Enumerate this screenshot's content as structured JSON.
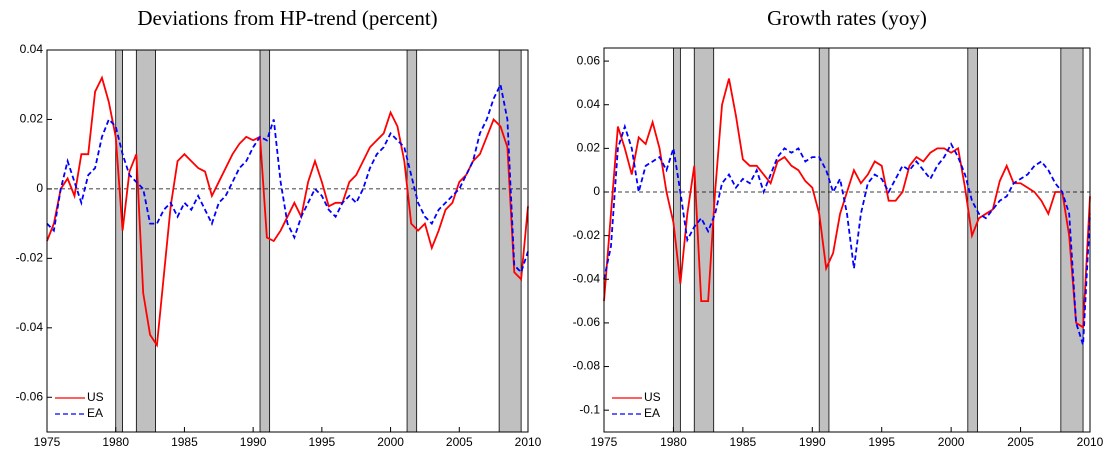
{
  "chart_data": [
    {
      "type": "line",
      "title": "Deviations from HP-trend (percent)",
      "x": [
        1975,
        1975.5,
        1976,
        1976.5,
        1977,
        1977.5,
        1978,
        1978.5,
        1979,
        1979.5,
        1980,
        1980.5,
        1981,
        1981.5,
        1982,
        1982.5,
        1983,
        1983.5,
        1984,
        1984.5,
        1985,
        1985.5,
        1986,
        1986.5,
        1987,
        1987.5,
        1988,
        1988.5,
        1989,
        1989.5,
        1990,
        1990.5,
        1991,
        1991.5,
        1992,
        1992.5,
        1993,
        1993.5,
        1994,
        1994.5,
        1995,
        1995.5,
        1996,
        1996.5,
        1997,
        1997.5,
        1998,
        1998.5,
        1999,
        1999.5,
        2000,
        2000.5,
        2001,
        2001.5,
        2002,
        2002.5,
        2003,
        2003.5,
        2004,
        2004.5,
        2005,
        2005.5,
        2006,
        2006.5,
        2007,
        2007.5,
        2008,
        2008.5,
        2009,
        2009.5,
        2010
      ],
      "series": [
        {
          "name": "US",
          "color": "#ff0000",
          "dash": "solid",
          "values": [
            -0.015,
            -0.01,
            0.0,
            0.003,
            -0.002,
            0.01,
            0.01,
            0.028,
            0.032,
            0.025,
            0.015,
            -0.012,
            0.005,
            0.01,
            -0.03,
            -0.042,
            -0.045,
            -0.025,
            -0.005,
            0.008,
            0.01,
            0.008,
            0.006,
            0.005,
            -0.002,
            0.002,
            0.006,
            0.01,
            0.013,
            0.015,
            0.014,
            0.015,
            -0.014,
            -0.015,
            -0.012,
            -0.008,
            -0.004,
            -0.008,
            0.002,
            0.008,
            0.002,
            -0.005,
            -0.004,
            -0.004,
            0.002,
            0.004,
            0.008,
            0.012,
            0.014,
            0.016,
            0.022,
            0.018,
            0.008,
            -0.01,
            -0.012,
            -0.01,
            -0.017,
            -0.012,
            -0.006,
            -0.004,
            0.002,
            0.004,
            0.008,
            0.01,
            0.015,
            0.02,
            0.018,
            0.012,
            -0.024,
            -0.026,
            -0.005
          ]
        },
        {
          "name": "EA",
          "color": "#0000ff",
          "dash": "dashed",
          "values": [
            -0.01,
            -0.012,
            0.0,
            0.008,
            0.002,
            -0.004,
            0.004,
            0.006,
            0.015,
            0.02,
            0.018,
            0.01,
            0.004,
            0.002,
            0.0,
            -0.01,
            -0.01,
            -0.006,
            -0.004,
            -0.008,
            -0.004,
            -0.006,
            -0.002,
            -0.006,
            -0.01,
            -0.004,
            -0.002,
            0.002,
            0.006,
            0.008,
            0.012,
            0.015,
            0.014,
            0.02,
            0.002,
            -0.01,
            -0.014,
            -0.008,
            -0.004,
            0.0,
            -0.002,
            -0.006,
            -0.008,
            -0.004,
            -0.002,
            -0.004,
            0.0,
            0.006,
            0.01,
            0.012,
            0.016,
            0.014,
            0.012,
            0.004,
            -0.004,
            -0.008,
            -0.01,
            -0.006,
            -0.004,
            -0.002,
            0.0,
            0.004,
            0.008,
            0.016,
            0.02,
            0.026,
            0.03,
            0.02,
            -0.022,
            -0.024,
            -0.018
          ]
        }
      ],
      "xlim": [
        1975,
        2010
      ],
      "xticks": [
        1975,
        1980,
        1985,
        1990,
        1995,
        2000,
        2005,
        2010
      ],
      "ylim": [
        -0.07,
        0.04
      ],
      "yticks": [
        -0.06,
        -0.04,
        -0.02,
        0,
        0.02,
        0.04
      ],
      "hline": 0,
      "shaded": [
        [
          1980,
          1980.5
        ],
        [
          1981.5,
          1982.9
        ],
        [
          1990.5,
          1991.2
        ],
        [
          2001.2,
          2001.9
        ],
        [
          2007.9,
          2009.5
        ]
      ],
      "shade_color": "#c0c0c0",
      "legend": "lower left",
      "grid": false
    },
    {
      "type": "line",
      "title": "Growth rates (yoy)",
      "x": [
        1975,
        1975.5,
        1976,
        1976.5,
        1977,
        1977.5,
        1978,
        1978.5,
        1979,
        1979.5,
        1980,
        1980.5,
        1981,
        1981.5,
        1982,
        1982.5,
        1983,
        1983.5,
        1984,
        1984.5,
        1985,
        1985.5,
        1986,
        1986.5,
        1987,
        1987.5,
        1988,
        1988.5,
        1989,
        1989.5,
        1990,
        1990.5,
        1991,
        1991.5,
        1992,
        1992.5,
        1993,
        1993.5,
        1994,
        1994.5,
        1995,
        1995.5,
        1996,
        1996.5,
        1997,
        1997.5,
        1998,
        1998.5,
        1999,
        1999.5,
        2000,
        2000.5,
        2001,
        2001.5,
        2002,
        2002.5,
        2003,
        2003.5,
        2004,
        2004.5,
        2005,
        2005.5,
        2006,
        2006.5,
        2007,
        2007.5,
        2008,
        2008.5,
        2009,
        2009.5,
        2010
      ],
      "series": [
        {
          "name": "US",
          "color": "#ff0000",
          "dash": "solid",
          "values": [
            -0.05,
            -0.01,
            0.03,
            0.02,
            0.008,
            0.025,
            0.022,
            0.032,
            0.02,
            0.0,
            -0.014,
            -0.042,
            -0.01,
            0.012,
            -0.05,
            -0.05,
            0.0,
            0.04,
            0.052,
            0.035,
            0.015,
            0.012,
            0.012,
            0.008,
            0.004,
            0.014,
            0.016,
            0.012,
            0.01,
            0.005,
            0.002,
            -0.01,
            -0.035,
            -0.028,
            -0.01,
            0.0,
            0.01,
            0.004,
            0.008,
            0.014,
            0.012,
            -0.004,
            -0.004,
            0.0,
            0.012,
            0.016,
            0.014,
            0.018,
            0.02,
            0.02,
            0.018,
            0.02,
            0.002,
            -0.02,
            -0.012,
            -0.01,
            -0.008,
            0.005,
            0.012,
            0.004,
            0.004,
            0.002,
            0.0,
            -0.004,
            -0.01,
            0.0,
            0.0,
            -0.02,
            -0.06,
            -0.062,
            -0.002
          ]
        },
        {
          "name": "EA",
          "color": "#0000ff",
          "dash": "dashed",
          "values": [
            -0.04,
            -0.025,
            0.02,
            0.03,
            0.02,
            0.0,
            0.012,
            0.014,
            0.016,
            0.01,
            0.02,
            0.0,
            -0.022,
            -0.016,
            -0.012,
            -0.018,
            -0.01,
            0.004,
            0.008,
            0.002,
            0.006,
            0.004,
            0.01,
            0.0,
            0.008,
            0.016,
            0.02,
            0.018,
            0.02,
            0.014,
            0.016,
            0.016,
            0.01,
            0.0,
            0.006,
            -0.01,
            -0.035,
            -0.01,
            0.004,
            0.008,
            0.006,
            0.0,
            0.006,
            0.012,
            0.01,
            0.014,
            0.01,
            0.006,
            0.012,
            0.016,
            0.022,
            0.016,
            0.008,
            -0.004,
            -0.01,
            -0.012,
            -0.008,
            -0.004,
            -0.002,
            0.004,
            0.006,
            0.008,
            0.012,
            0.014,
            0.01,
            0.004,
            0.0,
            -0.01,
            -0.06,
            -0.07,
            -0.01
          ]
        }
      ],
      "xlim": [
        1975,
        2010
      ],
      "xticks": [
        1975,
        1980,
        1985,
        1990,
        1995,
        2000,
        2005,
        2010
      ],
      "ylim": [
        -0.11,
        0.066
      ],
      "yticks": [
        -0.1,
        -0.08,
        -0.06,
        -0.04,
        -0.02,
        0,
        0.02,
        0.04,
        0.06
      ],
      "hline": 0,
      "shaded": [
        [
          1980,
          1980.5
        ],
        [
          1981.5,
          1982.9
        ],
        [
          1990.5,
          1991.2
        ],
        [
          2001.2,
          2001.9
        ],
        [
          2007.9,
          2009.5
        ]
      ],
      "shade_color": "#c0c0c0",
      "legend": "lower left",
      "grid": false
    }
  ]
}
